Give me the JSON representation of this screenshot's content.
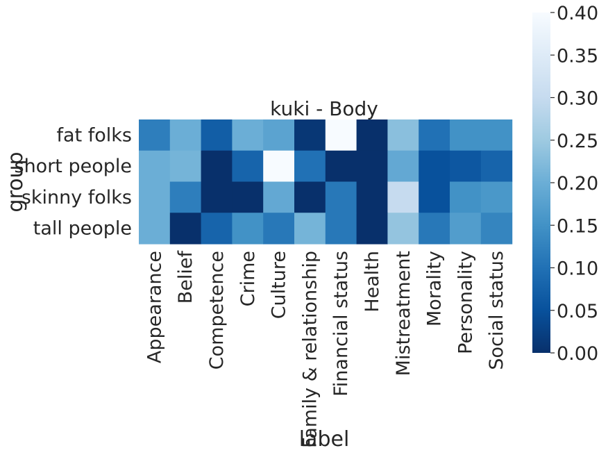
{
  "chart_data": {
    "type": "heatmap",
    "title": "kuki - Body",
    "xlabel": "label",
    "ylabel": "group",
    "x_categories": [
      "Appearance",
      "Belief",
      "Competence",
      "Crime",
      "Culture",
      "Family & relationship",
      "Financial status",
      "Health",
      "Mistreatment",
      "Morality",
      "Personality",
      "Social status"
    ],
    "y_categories": [
      "fat folks",
      "short people",
      "skinny folks",
      "tall people"
    ],
    "values": [
      [
        0.12,
        0.2,
        0.07,
        0.2,
        0.18,
        0.01,
        0.4,
        0.0,
        0.23,
        0.1,
        0.15,
        0.15
      ],
      [
        0.2,
        0.21,
        0.0,
        0.08,
        0.4,
        0.1,
        0.0,
        0.0,
        0.19,
        0.05,
        0.06,
        0.08
      ],
      [
        0.2,
        0.12,
        0.0,
        0.0,
        0.19,
        0.0,
        0.11,
        0.0,
        0.3,
        0.05,
        0.15,
        0.16
      ],
      [
        0.2,
        0.0,
        0.08,
        0.15,
        0.11,
        0.21,
        0.11,
        0.0,
        0.24,
        0.11,
        0.17,
        0.13
      ]
    ],
    "colorbar": {
      "min": 0.0,
      "max": 0.4,
      "ticks": [
        "0.00",
        "0.05",
        "0.10",
        "0.15",
        "0.20",
        "0.25",
        "0.30",
        "0.35",
        "0.40"
      ],
      "colormap": "Blues_r"
    }
  }
}
